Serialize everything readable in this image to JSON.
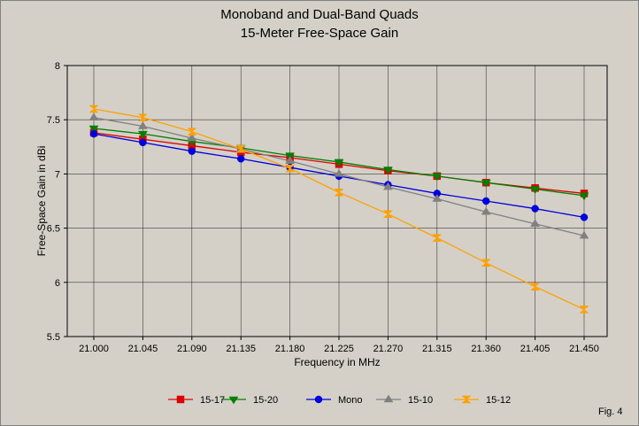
{
  "figure_label": "Fig. 4",
  "chart_data": {
    "type": "line",
    "title_line1": "Monoband and Dual-Band Quads",
    "title_line2": "15-Meter Free-Space Gain",
    "xlabel": "Frequency in MHz",
    "ylabel": "Free-Space Gain in dBi",
    "categories": [
      "21.000",
      "21.045",
      "21.090",
      "21.135",
      "21.180",
      "21.225",
      "21.270",
      "21.315",
      "21.360",
      "21.405",
      "21.450"
    ],
    "ylim": [
      5.5,
      8
    ],
    "yticks": [
      5.5,
      6,
      6.5,
      7,
      7.5,
      8
    ],
    "ytick_labels": [
      "5.5",
      "6",
      "6.5",
      "7",
      "7.5",
      "8"
    ],
    "grid": true,
    "legend_position": "bottom",
    "series": [
      {
        "name": "15-17",
        "color": "#dd0000",
        "marker": "square",
        "values": [
          7.38,
          7.32,
          7.26,
          7.2,
          7.15,
          7.09,
          7.03,
          6.98,
          6.92,
          6.87,
          6.82
        ]
      },
      {
        "name": "15-20",
        "color": "#008000",
        "marker": "triangle-down",
        "values": [
          7.42,
          7.37,
          7.3,
          7.24,
          7.17,
          7.11,
          7.04,
          6.98,
          6.92,
          6.86,
          6.8
        ]
      },
      {
        "name": "Mono",
        "color": "#0000dd",
        "marker": "circle",
        "values": [
          7.37,
          7.29,
          7.21,
          7.14,
          7.06,
          6.98,
          6.9,
          6.82,
          6.75,
          6.68,
          6.6
        ]
      },
      {
        "name": "15-10",
        "color": "#808080",
        "marker": "triangle-up",
        "values": [
          7.52,
          7.44,
          7.33,
          7.23,
          7.12,
          7.0,
          6.88,
          6.77,
          6.65,
          6.54,
          6.43
        ]
      },
      {
        "name": "15-12",
        "color": "#ffa000",
        "marker": "hourglass",
        "values": [
          7.6,
          7.52,
          7.39,
          7.23,
          7.05,
          6.83,
          6.63,
          6.41,
          6.18,
          5.96,
          5.75
        ]
      }
    ]
  }
}
